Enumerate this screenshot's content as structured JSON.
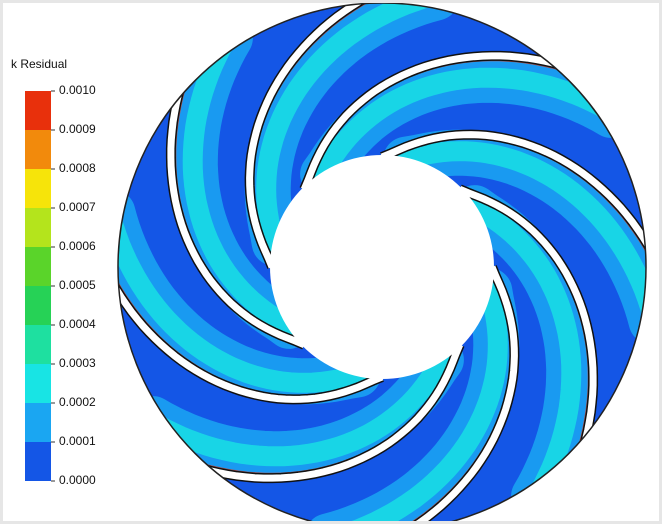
{
  "legend": {
    "title": "k Residual",
    "labels": [
      "0.0010",
      "0.0009",
      "0.0008",
      "0.0007",
      "0.0006",
      "0.0005",
      "0.0004",
      "0.0003",
      "0.0002",
      "0.0001",
      "0.0000"
    ],
    "colors": [
      "#e8300c",
      "#f28a0c",
      "#f6e40a",
      "#b4e41c",
      "#5ad42a",
      "#26d256",
      "#1ee0a0",
      "#18e4e4",
      "#1aa6f2",
      "#1456e6"
    ]
  }
}
